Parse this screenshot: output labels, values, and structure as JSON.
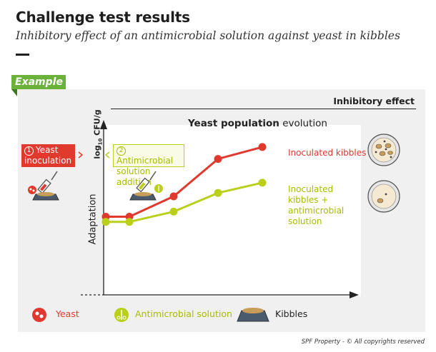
{
  "header": {
    "title": "Challenge test results",
    "subtitle": "Inhibitory effect of an antimicrobial solution against yeast in kibbles"
  },
  "example_tag": "Example",
  "effect_label": "Inhibitory effect",
  "step1": {
    "num": "1",
    "label": "Yeast inoculation"
  },
  "step2": {
    "num": "2",
    "label": "Antimicrobial solution addition"
  },
  "adaptation_label": "Adaptation",
  "legend": {
    "yeast": "Yeast",
    "antimicrobial": "Antimicrobial solution",
    "kibbles": "Kibbles"
  },
  "copyright": "SPF Property - © All copyrights reserved",
  "colors": {
    "red": "#e03a2f",
    "green": "#b9cf1a",
    "panel": "#f0f0f0"
  },
  "chart_data": {
    "type": "line",
    "title_bold": "Yeast population",
    "title_rest": " evolution",
    "ylabel_main": "log",
    "ylabel_sub": "10",
    "ylabel_tail": " CFU/g",
    "xlabel": "",
    "ylim": [
      0,
      10
    ],
    "x": [
      1,
      2,
      3,
      4,
      5
    ],
    "series": [
      {
        "name": "Inoculated kibbles",
        "color": "#e03a2f",
        "values": [
          4.6,
          4.6,
          5.8,
          8.0,
          8.7
        ]
      },
      {
        "name": "Inoculated kibbles + antimicrobial solution",
        "color": "#b9cf1a",
        "values": [
          4.3,
          4.3,
          4.9,
          6.0,
          6.6
        ]
      }
    ]
  }
}
